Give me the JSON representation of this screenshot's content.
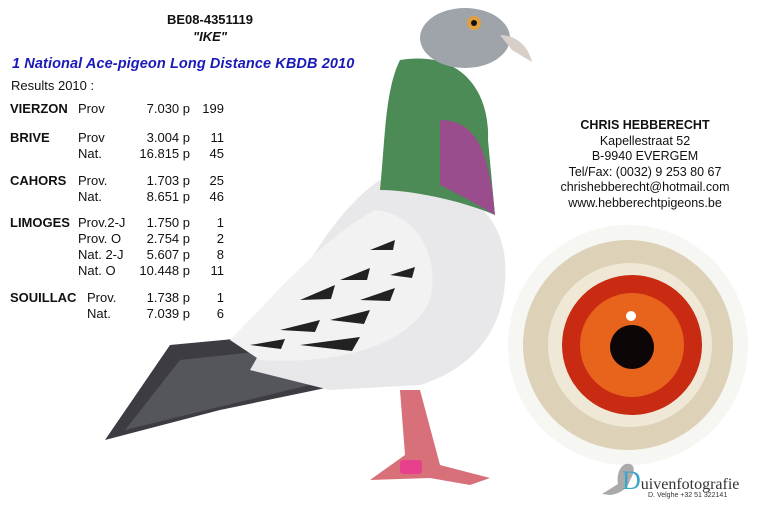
{
  "pigeon": {
    "ring_number": "BE08-4351119",
    "nickname": "\"IKE\""
  },
  "heading": "1 National Ace-pigeon Long Distance KBDB 2010",
  "results_label": "Results 2010 :",
  "results": [
    {
      "race": "VIERZON",
      "rows": [
        {
          "type": "Prov",
          "points": "7.030 p",
          "position": "199"
        }
      ]
    },
    {
      "race": "BRIVE",
      "rows": [
        {
          "type": "Prov",
          "points": "3.004 p",
          "position": "11"
        },
        {
          "type": "Nat.",
          "points": "16.815 p",
          "position": "45"
        }
      ]
    },
    {
      "race": "CAHORS",
      "rows": [
        {
          "type": "Prov.",
          "points": "1.703 p",
          "position": "25"
        },
        {
          "type": "Nat.",
          "points": "8.651 p",
          "position": "46"
        }
      ]
    },
    {
      "race": "LIMOGES",
      "rows": [
        {
          "type": "Prov.2-J",
          "points": "1.750 p",
          "position": "1"
        },
        {
          "type": "Prov. O",
          "points": "2.754 p",
          "position": "2"
        },
        {
          "type": "Nat. 2-J",
          "points": "5.607 p",
          "position": "8"
        },
        {
          "type": "Nat. O",
          "points": "10.448 p",
          "position": "11"
        }
      ]
    },
    {
      "race": "SOUILLAC",
      "rows": [
        {
          "type": "Prov.",
          "points": "1.738 p",
          "position": "1"
        },
        {
          "type": "Nat.",
          "points": "7.039 p",
          "position": "6"
        }
      ]
    }
  ],
  "contact": {
    "name": "CHRIS HEBBERECHT",
    "street": "Kapellestraat 52",
    "city": "B-9940 EVERGEM",
    "phone": "Tel/Fax: (0032) 9 253 80 67",
    "email": "chrishebberecht@hotmail.com",
    "website": "www.hebberechtpigeons.be"
  },
  "photographer": {
    "initial": "D",
    "brand_rest": "uivenfotografie",
    "credit": "D. Velghe +32 51 322141"
  },
  "colors": {
    "heading": "#1a1ab8",
    "iris": "#d8401a",
    "logo_accent": "#3aa6c8"
  }
}
